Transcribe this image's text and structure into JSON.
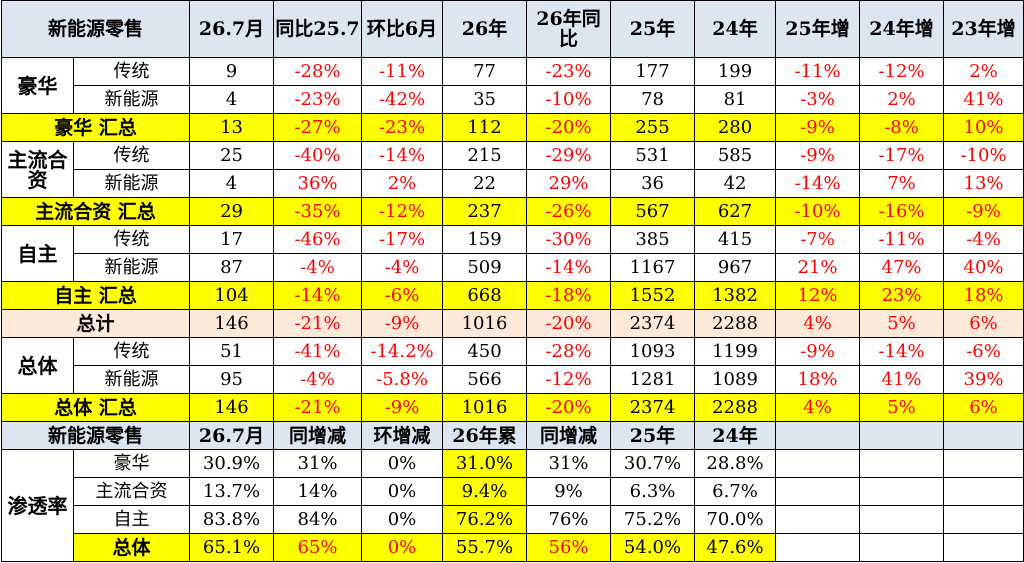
{
  "table": {
    "header": [
      "新能源零售",
      "26.7月",
      "同比25.7",
      "环比6月",
      "26年",
      "26年同比",
      "25年",
      "24年",
      "25年增",
      "24年增",
      "23年增"
    ],
    "rows": [
      {
        "group": "豪华",
        "items": [
          {
            "label": "传统",
            "cells": [
              "9",
              "-28%",
              "-11%",
              "77",
              "-23%",
              "177",
              "199",
              "-11%",
              "-12%",
              "2%"
            ]
          },
          {
            "label": "新能源",
            "cells": [
              "4",
              "-23%",
              "-42%",
              "35",
              "-10%",
              "78",
              "81",
              "-3%",
              "2%",
              "41%"
            ]
          }
        ]
      },
      {
        "total": "豪华 汇总",
        "fill": "#ffff00",
        "cells": [
          "13",
          "-27%",
          "-23%",
          "112",
          "-20%",
          "255",
          "280",
          "-9%",
          "-8%",
          "10%"
        ]
      },
      {
        "group": "主流合资",
        "items": [
          {
            "label": "传统",
            "cells": [
              "25",
              "-40%",
              "-14%",
              "215",
              "-29%",
              "531",
              "585",
              "-9%",
              "-17%",
              "-10%"
            ]
          },
          {
            "label": "新能源",
            "cells": [
              "4",
              "36%",
              "2%",
              "22",
              "29%",
              "36",
              "42",
              "-14%",
              "7%",
              "13%"
            ]
          }
        ]
      },
      {
        "total": "主流合资 汇总",
        "fill": "#ffff00",
        "cells": [
          "29",
          "-35%",
          "-12%",
          "237",
          "-26%",
          "567",
          "627",
          "-10%",
          "-16%",
          "-9%"
        ]
      },
      {
        "group": "自主",
        "items": [
          {
            "label": "传统",
            "cells": [
              "17",
              "-46%",
              "-17%",
              "159",
              "-30%",
              "385",
              "415",
              "-7%",
              "-11%",
              "-4%"
            ]
          },
          {
            "label": "新能源",
            "cells": [
              "87",
              "-4%",
              "-4%",
              "509",
              "-14%",
              "1167",
              "967",
              "21%",
              "47%",
              "40%"
            ]
          }
        ]
      },
      {
        "total": "自主 汇总",
        "fill": "#ffff00",
        "cells": [
          "104",
          "-14%",
          "-6%",
          "668",
          "-18%",
          "1552",
          "1382",
          "12%",
          "23%",
          "18%"
        ]
      },
      {
        "total": "总计",
        "fill": "#fde9d9",
        "cells": [
          "146",
          "-21%",
          "-9%",
          "1016",
          "-20%",
          "2374",
          "2288",
          "4%",
          "5%",
          "6%"
        ]
      },
      {
        "group": "总体",
        "items": [
          {
            "label": "传统",
            "cells": [
              "51",
              "-41%",
              "-14.2%",
              "450",
              "-28%",
              "1093",
              "1199",
              "-9%",
              "-14%",
              "-6%"
            ]
          },
          {
            "label": "新能源",
            "cells": [
              "95",
              "-4%",
              "-5.8%",
              "566",
              "-12%",
              "1281",
              "1089",
              "18%",
              "41%",
              "39%"
            ]
          }
        ]
      },
      {
        "total": "总体 汇总",
        "fill": "#ffff00",
        "cells": [
          "146",
          "-21%",
          "-9%",
          "1016",
          "-20%",
          "2374",
          "2288",
          "4%",
          "5%",
          "6%"
        ]
      }
    ]
  },
  "penetration": {
    "header": [
      "新能源零售",
      "26.7月",
      "同增减",
      "环增减",
      "26年累",
      "同增减",
      "25年",
      "24年"
    ],
    "group": "渗透率",
    "rows": [
      {
        "label": "豪华",
        "cells": [
          "30.9%",
          "31%",
          "0%",
          "31.0%",
          "31%",
          "30.7%",
          "28.8%"
        ]
      },
      {
        "label": "主流合资",
        "cells": [
          "13.7%",
          "14%",
          "0%",
          "9.4%",
          "9%",
          "6.3%",
          "6.7%"
        ]
      },
      {
        "label": "自主",
        "cells": [
          "83.8%",
          "84%",
          "0%",
          "76.2%",
          "76%",
          "75.2%",
          "70.0%"
        ]
      },
      {
        "label": "总体",
        "cells": [
          "65.1%",
          "65%",
          "0%",
          "55.7%",
          "56%",
          "54.0%",
          "47.6%"
        ]
      }
    ]
  }
}
